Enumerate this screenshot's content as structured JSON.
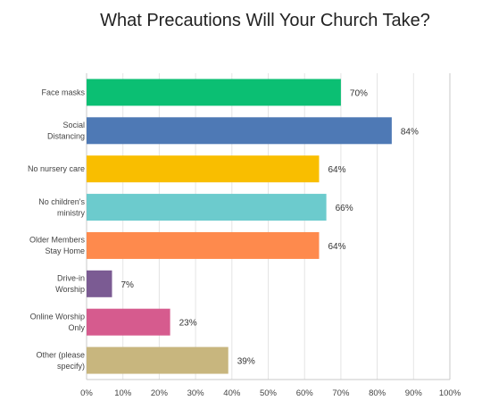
{
  "chart_data": {
    "type": "bar",
    "orientation": "horizontal",
    "title": "What Precautions Will Your Church Take?",
    "categories": [
      [
        "Face masks"
      ],
      [
        "Social",
        "Distancing"
      ],
      [
        "No nursery care"
      ],
      [
        "No children's",
        "ministry"
      ],
      [
        "Older Members",
        "Stay Home"
      ],
      [
        "Drive-in",
        "Worship"
      ],
      [
        "Online Worship",
        "Only"
      ],
      [
        "Other (please",
        "specify)"
      ]
    ],
    "values": [
      70,
      84,
      64,
      66,
      64,
      7,
      23,
      39
    ],
    "value_labels": [
      "70%",
      "84%",
      "64%",
      "66%",
      "64%",
      "7%",
      "23%",
      "39%"
    ],
    "colors": [
      "#0bbf73",
      "#4e79b5",
      "#f9be00",
      "#6ccbcd",
      "#fe8a4d",
      "#7b5b93",
      "#d65b8e",
      "#c8b67e"
    ],
    "xlim": [
      0,
      100
    ],
    "x_ticks": [
      "0%",
      "10%",
      "20%",
      "30%",
      "40%",
      "50%",
      "60%",
      "70%",
      "80%",
      "90%",
      "100%"
    ],
    "grid": "vertical",
    "legend": "none"
  }
}
